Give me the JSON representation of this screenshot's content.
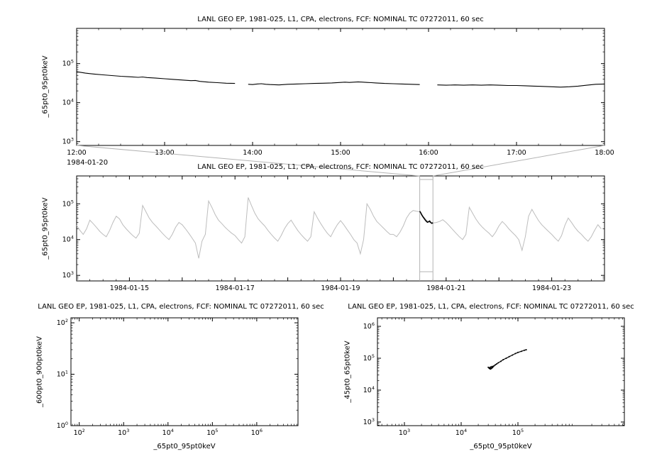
{
  "colors": {
    "series": "#000000",
    "context_series": "#bdbdbd",
    "connector": "#b3b3b3",
    "axis": "#000000",
    "background": "#ffffff"
  },
  "chart_data": [
    {
      "id": "p1",
      "type": "line",
      "title": "LANL GEO EP, 1981-025, L1, CPA, electrons, FCF: NOMINAL TC 07272011, 60 sec",
      "ylabel": "_65pt0_95pt0keV",
      "x_axis": {
        "type": "time",
        "min": 12,
        "max": 18,
        "major_step": 1,
        "minor_step": 0.25,
        "context_label": "1984-01-20",
        "ticks": [
          {
            "v": 12,
            "label": "12:00"
          },
          {
            "v": 13,
            "label": "13:00"
          },
          {
            "v": 14,
            "label": "14:00"
          },
          {
            "v": 15,
            "label": "15:00"
          },
          {
            "v": 16,
            "label": "16:00"
          },
          {
            "v": 17,
            "label": "17:00"
          },
          {
            "v": 18,
            "label": "18:00"
          }
        ]
      },
      "y_axis": {
        "type": "log",
        "min": 800,
        "max": 800000,
        "tick_exponents": [
          3,
          4,
          5
        ]
      },
      "segments": [
        [
          [
            12.0,
            62000
          ],
          [
            12.1,
            57000
          ],
          [
            12.2,
            54000
          ],
          [
            12.3,
            51500
          ],
          [
            12.4,
            49500
          ],
          [
            12.5,
            47500
          ],
          [
            12.6,
            46000
          ],
          [
            12.7,
            44500
          ],
          [
            12.75,
            45500
          ],
          [
            12.8,
            44000
          ],
          [
            12.9,
            42500
          ],
          [
            13.0,
            41000
          ],
          [
            13.1,
            39500
          ],
          [
            13.2,
            38000
          ],
          [
            13.3,
            36500
          ],
          [
            13.35,
            37000
          ],
          [
            13.4,
            35000
          ],
          [
            13.5,
            33500
          ],
          [
            13.6,
            32500
          ],
          [
            13.7,
            31500
          ],
          [
            13.8,
            31000
          ]
        ],
        [
          [
            13.95,
            29500
          ],
          [
            14.0,
            29000
          ],
          [
            14.05,
            30000
          ],
          [
            14.1,
            30500
          ],
          [
            14.15,
            29500
          ],
          [
            14.2,
            29000
          ],
          [
            14.3,
            28500
          ],
          [
            14.4,
            29500
          ],
          [
            14.5,
            30000
          ],
          [
            14.6,
            30500
          ],
          [
            14.7,
            31000
          ],
          [
            14.8,
            31500
          ],
          [
            14.9,
            32000
          ],
          [
            15.0,
            33000
          ],
          [
            15.05,
            33500
          ],
          [
            15.1,
            33000
          ],
          [
            15.2,
            34000
          ],
          [
            15.3,
            33000
          ],
          [
            15.35,
            32500
          ],
          [
            15.4,
            32000
          ],
          [
            15.5,
            31000
          ],
          [
            15.6,
            30500
          ],
          [
            15.7,
            30000
          ],
          [
            15.8,
            29500
          ],
          [
            15.9,
            29000
          ]
        ],
        [
          [
            16.1,
            28500
          ],
          [
            16.2,
            28000
          ],
          [
            16.3,
            28500
          ],
          [
            16.4,
            28000
          ],
          [
            16.5,
            28500
          ],
          [
            16.6,
            28000
          ],
          [
            16.7,
            28500
          ],
          [
            16.8,
            28000
          ],
          [
            16.9,
            27500
          ],
          [
            17.0,
            27500
          ],
          [
            17.1,
            27000
          ],
          [
            17.2,
            26500
          ],
          [
            17.3,
            26000
          ],
          [
            17.4,
            25500
          ],
          [
            17.5,
            25000
          ],
          [
            17.6,
            25500
          ],
          [
            17.7,
            26500
          ],
          [
            17.8,
            28000
          ],
          [
            17.9,
            29500
          ],
          [
            18.0,
            30000
          ]
        ]
      ]
    },
    {
      "id": "p2",
      "type": "line",
      "title": "LANL GEO EP, 1981-025, L1, CPA, electrons, FCF: NOMINAL TC 07272011, 60 sec",
      "ylabel": "_65pt0_95pt0keV",
      "x_axis": {
        "type": "time",
        "min": 0,
        "max": 10,
        "major_step": 1,
        "minor_step": 0.25,
        "ticks": [
          {
            "v": 1,
            "label": "1984-01-15"
          },
          {
            "v": 3,
            "label": "1984-01-17"
          },
          {
            "v": 5,
            "label": "1984-01-19"
          },
          {
            "v": 7,
            "label": "1984-01-21"
          },
          {
            "v": 9,
            "label": "1984-01-23"
          }
        ]
      },
      "y_axis": {
        "type": "log",
        "min": 700,
        "max": 600000,
        "tick_exponents": [
          3,
          4,
          5
        ]
      },
      "series": {
        "t0": 0,
        "dt": 0.0625,
        "values": [
          25000,
          18000,
          14000,
          20000,
          35000,
          28000,
          22000,
          17000,
          14000,
          12000,
          18000,
          30000,
          45000,
          38000,
          26000,
          20000,
          16000,
          13000,
          11000,
          15000,
          90000,
          60000,
          40000,
          30000,
          24000,
          19000,
          15000,
          12000,
          10000,
          14000,
          22000,
          30000,
          26000,
          20000,
          15000,
          11000,
          8000,
          3000,
          9000,
          14000,
          120000,
          80000,
          50000,
          35000,
          28000,
          22000,
          18000,
          15000,
          13000,
          10000,
          8000,
          12000,
          150000,
          90000,
          55000,
          38000,
          30000,
          24000,
          18000,
          14000,
          11000,
          9000,
          13000,
          20000,
          28000,
          35000,
          25000,
          18000,
          14000,
          11000,
          9000,
          12000,
          60000,
          40000,
          28000,
          20000,
          15000,
          12000,
          18000,
          26000,
          34000,
          26000,
          19000,
          14000,
          10000,
          8000,
          4000,
          10000,
          100000,
          70000,
          45000,
          32000,
          26000,
          21000,
          17000,
          14000,
          14000,
          12000,
          16000,
          24000,
          40000,
          55000,
          65000,
          62000,
          60000,
          45000,
          35000,
          30000,
          29000,
          30000,
          32000,
          36000,
          30000,
          24000,
          19000,
          15000,
          12000,
          10000,
          14000,
          80000,
          55000,
          38000,
          28000,
          22000,
          18000,
          15000,
          12000,
          16000,
          24000,
          32000,
          26000,
          20000,
          16000,
          13000,
          10000,
          5000,
          12000,
          45000,
          70000,
          48000,
          34000,
          26000,
          21000,
          17000,
          14000,
          11000,
          9000,
          13000,
          25000,
          40000,
          30000,
          22000,
          17000,
          14000,
          11000,
          9000,
          12000,
          18000,
          26000,
          20000
        ]
      },
      "highlight": [
        [
          6.5,
          62000
        ],
        [
          6.521,
          55000
        ],
        [
          6.542,
          48000
        ],
        [
          6.563,
          43000
        ],
        [
          6.583,
          39000
        ],
        [
          6.604,
          35500
        ],
        [
          6.625,
          32500
        ],
        [
          6.646,
          30500
        ],
        [
          6.667,
          31500
        ],
        [
          6.688,
          33000
        ],
        [
          6.708,
          30000
        ],
        [
          6.729,
          28500
        ],
        [
          6.75,
          29500
        ]
      ],
      "selection": {
        "x0": 6.5,
        "x1": 6.75
      }
    },
    {
      "id": "p3",
      "type": "scatter",
      "title": "LANL GEO EP, 1981-025, L1, CPA, electrons, FCF: NOMINAL TC 07272011, 60 sec",
      "xlabel": "_65pt0_95pt0keV",
      "ylabel": "_600pt0_900pt0keV",
      "x_axis": {
        "type": "log",
        "min": 65,
        "max": 8500000,
        "tick_exponents": [
          2,
          3,
          4,
          5,
          6
        ]
      },
      "y_axis": {
        "type": "log",
        "min": 1,
        "max": 125,
        "tick_exponents": [
          0,
          1,
          2
        ]
      },
      "points": []
    },
    {
      "id": "p4",
      "type": "scatter",
      "title": "LANL GEO EP, 1981-025, L1, CPA, electrons, FCF: NOMINAL TC 07272011, 60 sec",
      "xlabel": "_65pt0_95pt0keV",
      "ylabel": "_45pt0_65pt0keV",
      "x_axis": {
        "type": "log",
        "min": 335,
        "max": 7500000,
        "tick_exponents": [
          3,
          4,
          5
        ]
      },
      "y_axis": {
        "type": "log",
        "min": 770,
        "max": 1850000,
        "tick_exponents": [
          3,
          4,
          5,
          6
        ]
      },
      "points": [
        [
          30000,
          52000
        ],
        [
          31000,
          49000
        ],
        [
          32000,
          47000
        ],
        [
          33000,
          46000
        ],
        [
          34000,
          48000
        ],
        [
          35000,
          50000
        ],
        [
          36000,
          52000
        ],
        [
          34500,
          49500
        ],
        [
          33500,
          47500
        ],
        [
          32500,
          46500
        ],
        [
          31500,
          48500
        ],
        [
          32000,
          51000
        ],
        [
          33000,
          53000
        ],
        [
          35000,
          55000
        ],
        [
          36000,
          53000
        ],
        [
          37000,
          56000
        ],
        [
          38000,
          58000
        ],
        [
          40000,
          62000
        ],
        [
          42000,
          66000
        ],
        [
          45000,
          72000
        ],
        [
          50000,
          80000
        ],
        [
          55000,
          90000
        ],
        [
          62000,
          100000
        ],
        [
          70000,
          112000
        ],
        [
          80000,
          126000
        ],
        [
          90000,
          140000
        ],
        [
          100000,
          152000
        ],
        [
          115000,
          165000
        ],
        [
          130000,
          178000
        ],
        [
          140000,
          185000
        ]
      ]
    }
  ]
}
